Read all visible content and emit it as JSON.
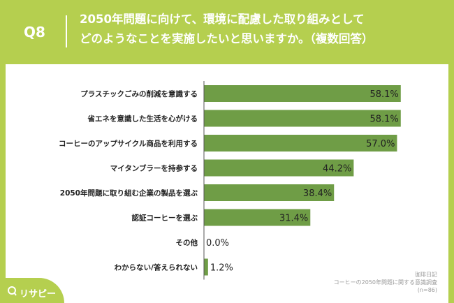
{
  "header": {
    "badge": "Q8",
    "title_line1": "2050年問題に向けて、環境に配慮した取り組みとして",
    "title_line2": "どのようなことを実施したいと思いますか。（複数回答）"
  },
  "source": {
    "line1": "珈琲日記",
    "line2": "コーヒーの2050年問題に関する意識調査",
    "line3": "(n=86)"
  },
  "logo": {
    "text": "リサピー"
  },
  "colors": {
    "background": "#b5cf4f",
    "bar": "#6f9d46",
    "axis": "#555555"
  },
  "chart_data": {
    "type": "bar",
    "orientation": "horizontal",
    "categories": [
      "プラスチックごみの削減を意識する",
      "省エネを意識した生活を心がける",
      "コーヒーのアップサイクル商品を利用する",
      "マイタンブラーを持参する",
      "2050年問題に取り組む企業の製品を選ぶ",
      "認証コーヒーを選ぶ",
      "その他",
      "わからない/答えられない"
    ],
    "values": [
      58.1,
      58.1,
      57.0,
      44.2,
      38.4,
      31.4,
      0.0,
      1.2
    ],
    "value_labels": [
      "58.1%",
      "58.1%",
      "57.0%",
      "44.2%",
      "38.4%",
      "31.4%",
      "0.0%",
      "1.2%"
    ],
    "xlim": [
      0,
      100
    ],
    "grid": false,
    "legend": "none"
  }
}
